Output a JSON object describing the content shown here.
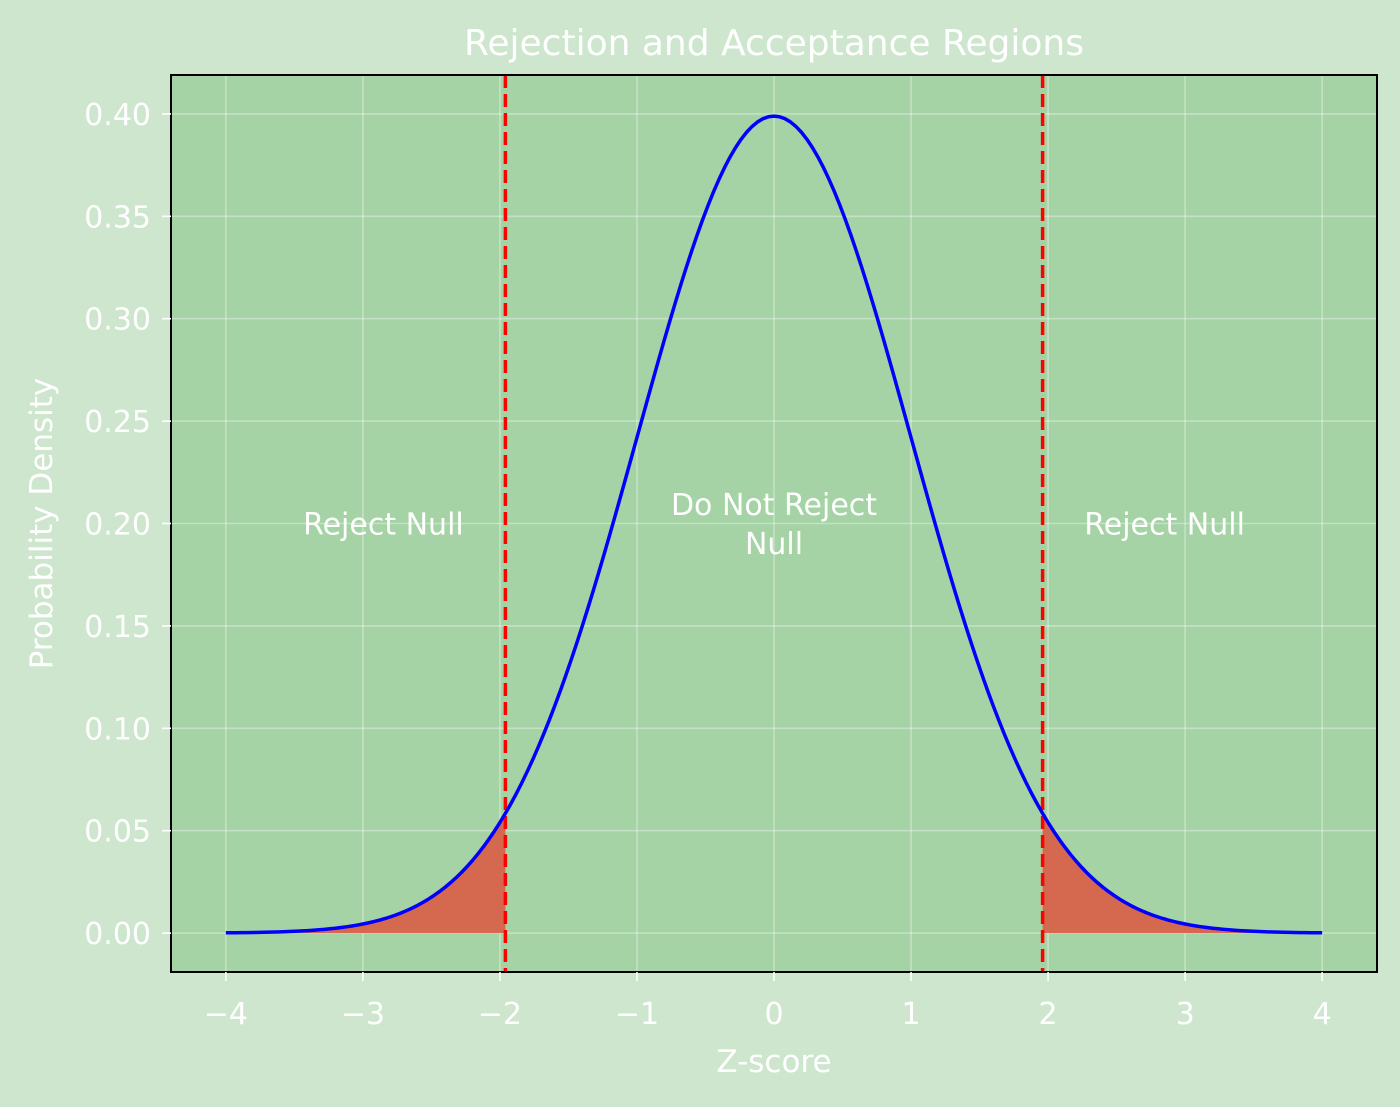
{
  "chart_data": {
    "type": "line",
    "title": "Rejection and Acceptance Regions",
    "xlabel": "Z-score",
    "ylabel": "Probability Density",
    "xlim": [
      -4.4,
      4.4
    ],
    "ylim": [
      -0.019,
      0.419
    ],
    "x_ticks": [
      -4,
      -3,
      -2,
      -1,
      0,
      1,
      2,
      3,
      4
    ],
    "x_tick_labels": [
      "−4",
      "−3",
      "−2",
      "−1",
      "0",
      "1",
      "2",
      "3",
      "4"
    ],
    "y_ticks": [
      0.0,
      0.05,
      0.1,
      0.15,
      0.2,
      0.25,
      0.3,
      0.35,
      0.4
    ],
    "y_tick_labels": [
      "0.00",
      "0.05",
      "0.10",
      "0.15",
      "0.20",
      "0.25",
      "0.30",
      "0.35",
      "0.40"
    ],
    "grid": true,
    "series": [
      {
        "distribution": "standard normal",
        "x_range": [
          -4,
          4
        ],
        "color": "#0000ff"
      }
    ],
    "critical_values": [
      -1.96,
      1.96
    ],
    "critical_line_color": "#ff0000",
    "rejection_fill_color": "#d4694f",
    "annotations": [
      {
        "text": "Reject Null",
        "x": -2.85,
        "y": 0.2
      },
      {
        "text": "Do Not Reject\nNull",
        "x": 0,
        "y": 0.2
      },
      {
        "text": "Reject Null",
        "x": 2.85,
        "y": 0.2
      }
    ],
    "colors": {
      "figure_background": "#cde6cd",
      "plot_background": "#a5d3a5",
      "text": "#ffffff"
    }
  }
}
